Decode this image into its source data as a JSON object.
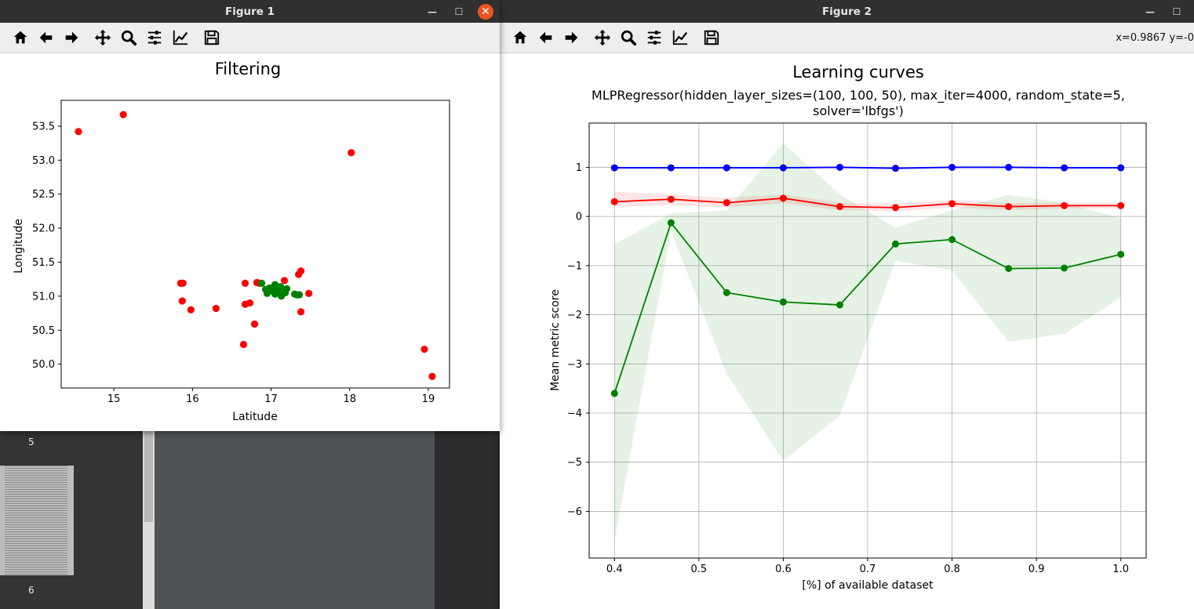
{
  "background": {
    "page_numbers": [
      "5",
      "6"
    ]
  },
  "figure1": {
    "title": "Figure 1",
    "toolbar_icons": [
      "home-icon",
      "back-icon",
      "forward-icon",
      "pan-icon",
      "zoom-icon",
      "configure-icon",
      "edit-axis-icon",
      "save-icon"
    ]
  },
  "figure2": {
    "title": "Figure 2",
    "coords": "x=0.9867 y=-0",
    "toolbar_icons": [
      "home-icon",
      "back-icon",
      "forward-icon",
      "pan-icon",
      "zoom-icon",
      "configure-icon",
      "edit-axis-icon",
      "save-icon"
    ]
  },
  "chart_data": [
    {
      "type": "scatter",
      "title": "Filtering",
      "xlabel": "Latitude",
      "ylabel": "Longitude",
      "xlim": [
        14.33,
        19.27
      ],
      "ylim": [
        49.65,
        53.88
      ],
      "xticks": [
        "15",
        "16",
        "17",
        "18",
        "19"
      ],
      "yticks": [
        "50.0",
        "50.5",
        "51.0",
        "51.5",
        "52.0",
        "52.5",
        "53.0",
        "53.5"
      ],
      "grid": false,
      "series": [
        {
          "color": "#ff0000",
          "points": [
            [
              14.55,
              53.42
            ],
            [
              15.12,
              53.67
            ],
            [
              18.02,
              53.11
            ],
            [
              15.85,
              51.19
            ],
            [
              15.88,
              51.19
            ],
            [
              15.87,
              50.93
            ],
            [
              15.98,
              50.8
            ],
            [
              16.3,
              50.82
            ],
            [
              16.65,
              50.29
            ],
            [
              16.67,
              51.19
            ],
            [
              16.67,
              50.88
            ],
            [
              16.73,
              50.9
            ],
            [
              16.79,
              50.59
            ],
            [
              16.82,
              51.2
            ],
            [
              17.17,
              51.23
            ],
            [
              17.35,
              51.32
            ],
            [
              17.38,
              51.37
            ],
            [
              17.38,
              50.77
            ],
            [
              17.48,
              51.04
            ],
            [
              18.95,
              50.22
            ],
            [
              19.05,
              49.82
            ],
            [
              16.85,
              51.19
            ]
          ]
        },
        {
          "color": "#008000",
          "points": [
            [
              16.88,
              51.19
            ],
            [
              16.93,
              51.1
            ],
            [
              16.95,
              51.04
            ],
            [
              16.98,
              51.12
            ],
            [
              17.0,
              51.08
            ],
            [
              17.03,
              51.13
            ],
            [
              17.05,
              51.17
            ],
            [
              17.05,
              51.03
            ],
            [
              17.08,
              51.1
            ],
            [
              17.1,
              51.06
            ],
            [
              17.12,
              51.14
            ],
            [
              17.13,
              51.0
            ],
            [
              17.15,
              51.09
            ],
            [
              17.18,
              51.05
            ],
            [
              17.2,
              51.11
            ],
            [
              17.3,
              51.03
            ],
            [
              17.33,
              51.02
            ],
            [
              17.36,
              51.02
            ]
          ]
        }
      ]
    },
    {
      "type": "line",
      "title": "Learning curves",
      "subtitle_line1": "MLPRegressor(hidden_layer_sizes=(100, 100, 50), max_iter=4000, random_state=5,",
      "subtitle_line2": "solver='lbfgs')",
      "xlabel": "[%] of available dataset",
      "ylabel": "Mean metric score",
      "xlim": [
        0.37,
        1.03
      ],
      "ylim": [
        -6.95,
        1.9
      ],
      "xticks": [
        "0.4",
        "0.5",
        "0.6",
        "0.7",
        "0.8",
        "0.9",
        "1.0"
      ],
      "yticks": [
        "1",
        "0",
        "−1",
        "−2",
        "−3",
        "−4",
        "−5",
        "−6"
      ],
      "grid": true,
      "x": [
        0.4,
        0.467,
        0.533,
        0.6,
        0.667,
        0.733,
        0.8,
        0.867,
        0.933,
        1.0
      ],
      "series": [
        {
          "color": "#0000ff",
          "values": [
            0.99,
            0.99,
            0.99,
            0.99,
            1.0,
            0.98,
            1.0,
            1.0,
            0.99,
            0.99
          ],
          "band_low": [
            0.97,
            0.97,
            0.97,
            0.97,
            0.98,
            0.96,
            0.98,
            0.98,
            0.97,
            0.97
          ],
          "band_high": [
            1.01,
            1.01,
            1.01,
            1.01,
            1.02,
            1.0,
            1.02,
            1.02,
            1.01,
            1.01
          ]
        },
        {
          "color": "#ff0000",
          "values": [
            0.3,
            0.35,
            0.28,
            0.37,
            0.2,
            0.18,
            0.26,
            0.2,
            0.22,
            0.22
          ],
          "band_low": [
            0.2,
            0.23,
            0.18,
            0.27,
            0.13,
            0.1,
            0.18,
            0.13,
            0.16,
            0.16
          ],
          "band_high": [
            0.5,
            0.45,
            0.38,
            0.45,
            0.28,
            0.26,
            0.34,
            0.27,
            0.28,
            0.28
          ]
        },
        {
          "color": "#008000",
          "values": [
            -3.6,
            -0.13,
            -1.55,
            -1.74,
            -1.8,
            -0.56,
            -0.47,
            -1.06,
            -1.05,
            -0.77
          ],
          "band_low": [
            -6.6,
            -0.3,
            -3.2,
            -4.97,
            -4.05,
            -0.9,
            -1.1,
            -2.55,
            -2.39,
            -1.65
          ],
          "band_high": [
            -0.57,
            0.06,
            0.12,
            1.49,
            0.45,
            -0.23,
            0.13,
            0.44,
            0.28,
            -0.04
          ]
        }
      ]
    }
  ]
}
